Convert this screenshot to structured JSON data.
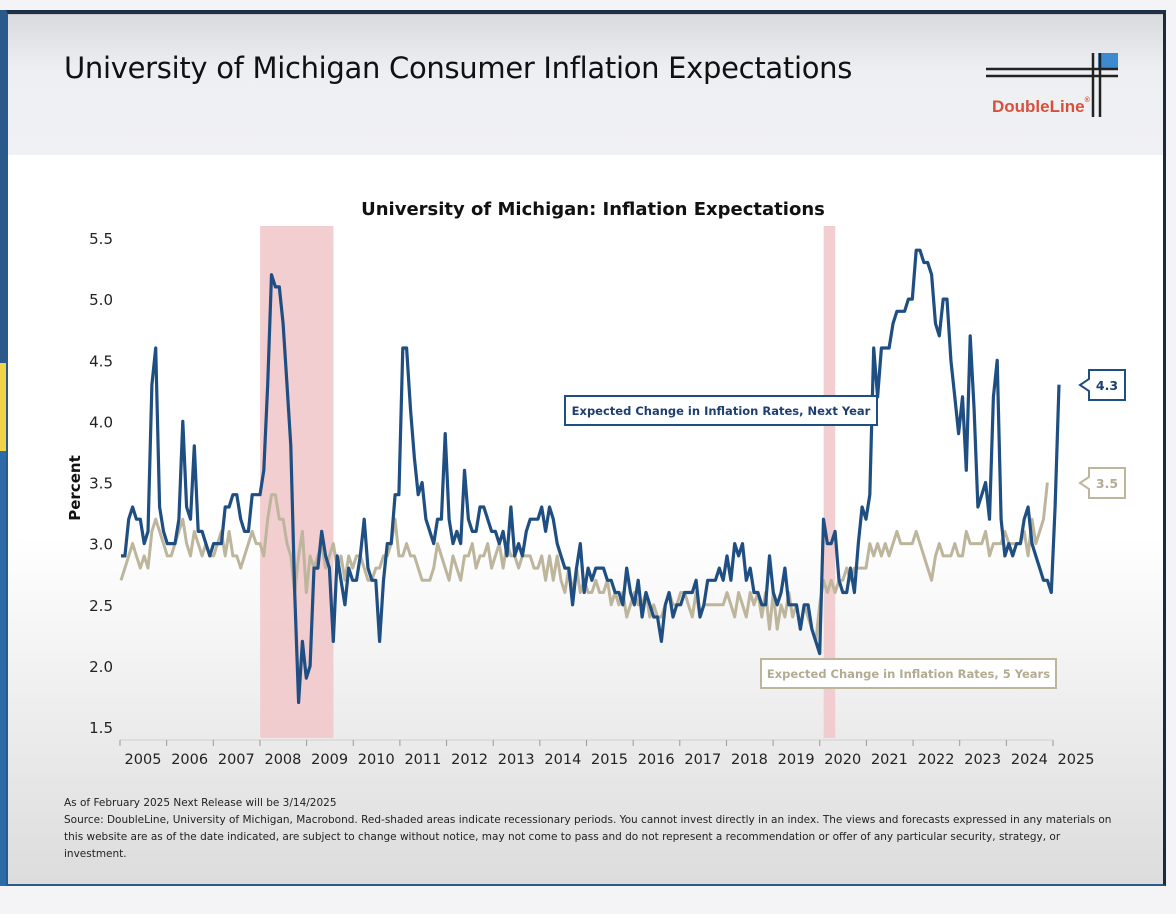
{
  "header": {
    "title": "University of Michigan Consumer Inflation Expectations",
    "logo_text": "DoubleLine",
    "logo_mark": "®",
    "logo_accent_color": "#3d8ad0",
    "logo_text_color": "#d9503a"
  },
  "footer": {
    "release_note": "As of February 2025 Next Release will be 3/14/2025",
    "source_note": "Source: DoubleLine, University of Michigan, Macrobond. Red-shaded areas indicate recessionary periods. You cannot invest directly in an index. The views and forecasts expressed in any materials on this website are as of the date indicated, are subject to change without notice, may not come to pass and do not represent a recommendation or offer of any particular security, strategy, or investment."
  },
  "chart_data": {
    "type": "line",
    "title": "University of Michigan: Inflation Expectations",
    "xlabel": "",
    "ylabel": "Percent",
    "ylim": [
      1.5,
      5.5
    ],
    "yticks": [
      "5.5",
      "5.0",
      "4.5",
      "4.0",
      "3.5",
      "3.0",
      "2.5",
      "2.0",
      "1.5"
    ],
    "ytick_values": [
      5.5,
      5.0,
      4.5,
      4.0,
      3.5,
      3.0,
      2.5,
      2.0,
      1.5
    ],
    "xticks": [
      "2005",
      "2006",
      "2007",
      "2008",
      "2009",
      "2010",
      "2011",
      "2012",
      "2013",
      "2014",
      "2015",
      "2016",
      "2017",
      "2018",
      "2019",
      "2020",
      "2021",
      "2022",
      "2023",
      "2024",
      "2025"
    ],
    "x_start": "2005-01",
    "x_frequency": "monthly",
    "grid": false,
    "recessions": [
      {
        "start": "2007-12",
        "end": "2009-06"
      },
      {
        "start": "2020-02",
        "end": "2020-04"
      }
    ],
    "recession_color": "#f2c9cc",
    "series": [
      {
        "name": "Expected Change in Inflation Rates, Next Year",
        "color": "#1f4e82",
        "last_value_label": "4.3",
        "values": [
          2.9,
          2.9,
          3.2,
          3.3,
          3.2,
          3.2,
          3.0,
          3.1,
          4.3,
          4.6,
          3.3,
          3.1,
          3.0,
          3.0,
          3.0,
          3.2,
          4.0,
          3.3,
          3.2,
          3.8,
          3.1,
          3.1,
          3.0,
          2.9,
          3.0,
          3.0,
          3.0,
          3.3,
          3.3,
          3.4,
          3.4,
          3.2,
          3.1,
          3.1,
          3.4,
          3.4,
          3.4,
          3.6,
          4.3,
          5.2,
          5.1,
          5.1,
          4.8,
          4.3,
          3.8,
          2.6,
          1.7,
          2.2,
          1.9,
          2.0,
          2.8,
          2.8,
          3.1,
          2.9,
          2.8,
          2.2,
          2.9,
          2.7,
          2.5,
          2.8,
          2.7,
          2.7,
          2.9,
          3.2,
          2.8,
          2.7,
          2.7,
          2.2,
          2.7,
          3.0,
          3.0,
          3.4,
          3.4,
          4.6,
          4.6,
          4.1,
          3.7,
          3.4,
          3.5,
          3.2,
          3.1,
          3.0,
          3.2,
          3.2,
          3.9,
          3.2,
          3.0,
          3.1,
          3.0,
          3.6,
          3.2,
          3.1,
          3.1,
          3.3,
          3.3,
          3.2,
          3.1,
          3.1,
          3.0,
          3.1,
          2.9,
          3.3,
          2.9,
          3.0,
          2.9,
          3.1,
          3.2,
          3.2,
          3.2,
          3.3,
          3.1,
          3.3,
          3.2,
          3.0,
          2.9,
          2.8,
          2.8,
          2.5,
          2.8,
          3.0,
          2.6,
          2.8,
          2.7,
          2.8,
          2.8,
          2.8,
          2.7,
          2.7,
          2.6,
          2.6,
          2.5,
          2.8,
          2.6,
          2.5,
          2.7,
          2.4,
          2.6,
          2.5,
          2.4,
          2.4,
          2.2,
          2.5,
          2.6,
          2.4,
          2.5,
          2.5,
          2.6,
          2.6,
          2.6,
          2.7,
          2.4,
          2.5,
          2.7,
          2.7,
          2.7,
          2.8,
          2.7,
          2.9,
          2.7,
          3.0,
          2.9,
          3.0,
          2.7,
          2.8,
          2.6,
          2.6,
          2.5,
          2.5,
          2.9,
          2.6,
          2.5,
          2.6,
          2.8,
          2.5,
          2.5,
          2.5,
          2.3,
          2.5,
          2.5,
          2.3,
          2.2,
          2.1,
          3.2,
          3.0,
          3.0,
          3.1,
          2.7,
          2.6,
          2.6,
          2.8,
          2.6,
          3.0,
          3.3,
          3.2,
          3.4,
          4.6,
          4.2,
          4.6,
          4.6,
          4.6,
          4.8,
          4.9,
          4.9,
          4.9,
          5.0,
          5.0,
          5.4,
          5.4,
          5.3,
          5.3,
          5.2,
          4.8,
          4.7,
          5.0,
          5.0,
          4.5,
          4.2,
          3.9,
          4.2,
          3.6,
          4.7,
          4.1,
          3.3,
          3.4,
          3.5,
          3.2,
          4.2,
          4.5,
          3.2,
          2.9,
          3.0,
          2.9,
          3.0,
          3.0,
          3.2,
          3.3,
          3.0,
          2.9,
          2.8,
          2.7,
          2.7,
          2.6,
          3.3,
          4.3
        ]
      },
      {
        "name": "Expected Change in Inflation Rates, 5 Years",
        "color": "#bdb59c",
        "last_value_label": "3.5",
        "values": [
          2.7,
          2.8,
          2.9,
          3.0,
          2.9,
          2.8,
          2.9,
          2.8,
          3.1,
          3.2,
          3.1,
          3.0,
          2.9,
          2.9,
          3.0,
          3.1,
          3.2,
          3.0,
          2.9,
          3.1,
          3.0,
          2.9,
          3.0,
          2.9,
          2.9,
          3.0,
          3.1,
          2.9,
          3.1,
          2.9,
          2.9,
          2.8,
          2.9,
          3.0,
          3.1,
          3.0,
          3.0,
          2.9,
          3.2,
          3.4,
          3.4,
          3.2,
          3.2,
          3.0,
          2.9,
          2.6,
          2.9,
          3.1,
          2.6,
          2.9,
          2.8,
          2.9,
          3.0,
          2.8,
          2.9,
          3.0,
          2.8,
          2.9,
          2.7,
          2.9,
          2.8,
          2.9,
          2.9,
          2.8,
          2.7,
          2.7,
          2.8,
          2.8,
          2.9,
          2.9,
          3.0,
          3.2,
          2.9,
          2.9,
          3.0,
          2.9,
          2.9,
          2.8,
          2.7,
          2.7,
          2.7,
          2.8,
          3.0,
          2.9,
          2.8,
          2.7,
          2.9,
          2.8,
          2.7,
          2.9,
          2.9,
          3.0,
          2.8,
          2.9,
          2.9,
          3.0,
          2.8,
          2.9,
          3.0,
          2.8,
          3.0,
          2.9,
          2.9,
          2.8,
          2.9,
          2.9,
          2.9,
          2.8,
          2.8,
          2.9,
          2.7,
          2.9,
          2.7,
          2.9,
          2.7,
          2.6,
          2.8,
          2.6,
          2.8,
          2.6,
          2.7,
          2.6,
          2.6,
          2.7,
          2.6,
          2.6,
          2.7,
          2.5,
          2.6,
          2.5,
          2.6,
          2.4,
          2.5,
          2.6,
          2.5,
          2.5,
          2.6,
          2.4,
          2.5,
          2.4,
          2.4,
          2.5,
          2.6,
          2.5,
          2.5,
          2.6,
          2.6,
          2.5,
          2.4,
          2.6,
          2.4,
          2.5,
          2.5,
          2.5,
          2.5,
          2.5,
          2.5,
          2.6,
          2.5,
          2.4,
          2.6,
          2.5,
          2.4,
          2.6,
          2.5,
          2.6,
          2.4,
          2.6,
          2.3,
          2.6,
          2.3,
          2.5,
          2.4,
          2.6,
          2.4,
          2.5,
          2.3,
          2.5,
          2.4,
          2.3,
          2.2,
          2.5,
          2.7,
          2.6,
          2.7,
          2.6,
          2.7,
          2.7,
          2.8,
          2.7,
          2.8,
          2.8,
          2.8,
          2.8,
          3.0,
          2.9,
          3.0,
          2.9,
          3.0,
          2.9,
          3.0,
          3.1,
          3.0,
          3.0,
          3.0,
          3.0,
          3.1,
          3.0,
          2.9,
          2.8,
          2.7,
          2.9,
          3.0,
          2.9,
          2.9,
          2.9,
          3.0,
          2.9,
          2.9,
          3.1,
          3.0,
          3.0,
          3.0,
          3.0,
          3.1,
          2.9,
          3.0,
          3.0,
          3.0,
          3.1,
          3.0,
          3.0,
          3.0,
          3.0,
          3.1,
          2.9,
          3.2,
          3.0,
          3.1,
          3.2,
          3.5
        ]
      }
    ],
    "annotations": [
      {
        "text": "Expected Change in Inflation Rates, Next Year",
        "series": 0
      },
      {
        "text": "Expected Change in Inflation Rates, 5 Years",
        "series": 1
      }
    ]
  }
}
